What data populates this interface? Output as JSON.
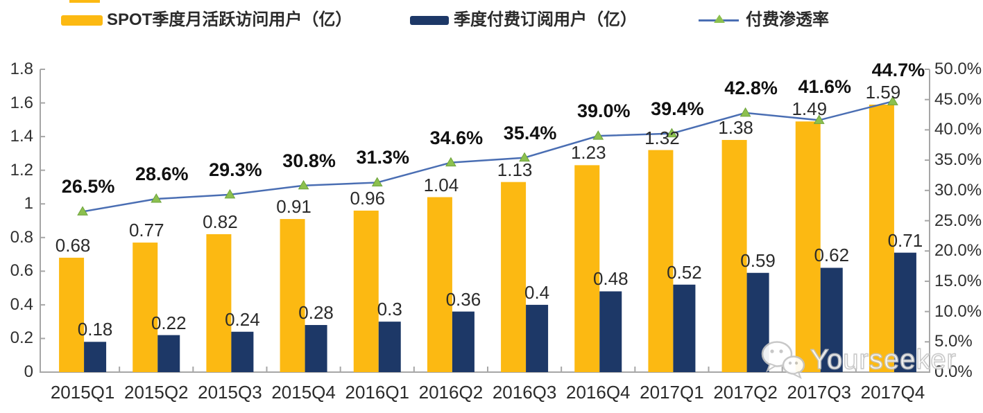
{
  "legend": [
    {
      "label": "SPOT季度月活跃访问用户（亿）",
      "color": "#FCB912",
      "type": "bar"
    },
    {
      "label": "季度付费订阅用户（亿）",
      "color": "#1D3867",
      "type": "bar"
    },
    {
      "label": "付费渗透率",
      "color": "#4A6EB3",
      "marker_color": "#8CC04F",
      "type": "line"
    }
  ],
  "watermark": {
    "text": "Yourseeker"
  },
  "chart_data": {
    "type": "bar+line",
    "categories": [
      "2015Q1",
      "2015Q2",
      "2015Q3",
      "2015Q4",
      "2016Q1",
      "2016Q2",
      "2016Q3",
      "2016Q4",
      "2017Q1",
      "2017Q2",
      "2017Q3",
      "2017Q4"
    ],
    "series": [
      {
        "name": "SPOT季度月活跃访问用户（亿）",
        "type": "bar",
        "color": "#FCB912",
        "axis": "left",
        "values": [
          0.68,
          0.77,
          0.82,
          0.91,
          0.96,
          1.04,
          1.13,
          1.23,
          1.32,
          1.38,
          1.49,
          1.59
        ],
        "value_labels": [
          "0.68",
          "0.77",
          "0.82",
          "0.91",
          "0.96",
          "1.04",
          "1.13",
          "1.23",
          "1.32",
          "1.38",
          "1.49",
          "1.59"
        ]
      },
      {
        "name": "季度付费订阅用户（亿）",
        "type": "bar",
        "color": "#1D3867",
        "axis": "left",
        "values": [
          0.18,
          0.22,
          0.24,
          0.28,
          0.3,
          0.36,
          0.4,
          0.48,
          0.52,
          0.59,
          0.62,
          0.71
        ],
        "value_labels": [
          "0.18",
          "0.22",
          "0.24",
          "0.28",
          "0.3",
          "0.36",
          "0.4",
          "0.48",
          "0.52",
          "0.59",
          "0.62",
          "0.71"
        ]
      },
      {
        "name": "付费渗透率",
        "type": "line",
        "color": "#4A6EB3",
        "marker_color": "#8CC04F",
        "axis": "right",
        "values": [
          26.5,
          28.6,
          29.3,
          30.8,
          31.3,
          34.6,
          35.4,
          39.0,
          39.4,
          42.8,
          41.6,
          44.7
        ],
        "value_labels": [
          "26.5%",
          "28.6%",
          "29.3%",
          "30.8%",
          "31.3%",
          "34.6%",
          "35.4%",
          "39.0%",
          "39.4%",
          "42.8%",
          "41.6%",
          "44.7%"
        ]
      }
    ],
    "left_axis": {
      "min": 0,
      "max": 1.8,
      "step": 0.2,
      "tick_labels": [
        "1.8",
        "1.6",
        "1.4",
        "1.2",
        "1",
        "0.8",
        "0.6",
        "0.4",
        "0.2",
        "0"
      ]
    },
    "right_axis": {
      "min": 0,
      "max": 50,
      "step": 5,
      "tick_labels": [
        "50.0%",
        "45.0%",
        "40.0%",
        "35.0%",
        "30.0%",
        "25.0%",
        "20.0%",
        "15.0%",
        "10.0%",
        "5.0%",
        "0.0%"
      ]
    },
    "grid": false,
    "legend_position": "top"
  }
}
